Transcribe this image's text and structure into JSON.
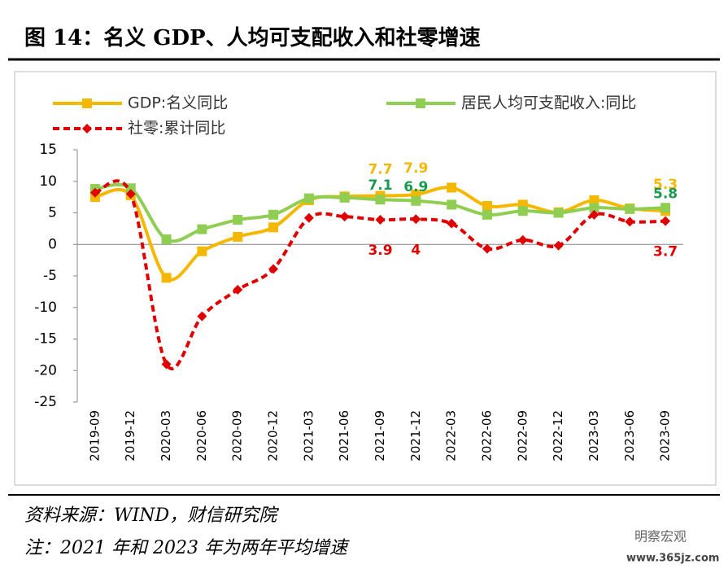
{
  "chart_data": {
    "type": "line",
    "title": "图 14：名义 GDP、人均可支配收入和社零增速",
    "source": "资料来源：WIND，财信研究院",
    "note": "注：2021 年和 2023 年为两年平均增速",
    "watermark": [
      "明察宏观",
      "www.365jz.com"
    ],
    "categories": [
      "2019-09",
      "2019-12",
      "2020-03",
      "2020-06",
      "2020-09",
      "2020-12",
      "2021-03",
      "2021-06",
      "2021-09",
      "2021-12",
      "2022-03",
      "2022-06",
      "2022-09",
      "2022-12",
      "2023-03",
      "2023-06",
      "2023-09"
    ],
    "series": [
      {
        "name": "GDP:名义同比",
        "color": "#f5b800",
        "marker": "square",
        "dashed": false,
        "values": [
          7.5,
          7.8,
          -5.3,
          -1.1,
          1.2,
          2.7,
          7.0,
          7.6,
          7.7,
          7.9,
          9.0,
          6.1,
          6.3,
          5.1,
          7.0,
          5.7,
          5.3
        ],
        "labeled_points": [
          8,
          9,
          16
        ]
      },
      {
        "name": "居民人均可支配收入:同比",
        "color": "#8fce52",
        "marker": "square",
        "dashed": false,
        "values": [
          8.8,
          8.9,
          0.8,
          2.4,
          3.9,
          4.7,
          7.3,
          7.4,
          7.1,
          6.9,
          6.3,
          4.7,
          5.3,
          5.0,
          5.8,
          5.6,
          5.8
        ],
        "labeled_points": [
          8,
          9,
          16
        ]
      },
      {
        "name": "社零:累计同比",
        "color": "#e00000",
        "marker": "diamond",
        "dashed": true,
        "values": [
          8.2,
          8.0,
          -19.0,
          -11.4,
          -7.2,
          -3.9,
          4.2,
          4.4,
          3.9,
          4.0,
          3.3,
          -0.7,
          0.7,
          -0.2,
          4.7,
          3.6,
          3.7
        ],
        "labeled_points": [
          8,
          9,
          16
        ]
      }
    ],
    "label_colors": [
      "#f5b800",
      "#1a9a50",
      "#e00000"
    ],
    "ylim": [
      -25,
      15
    ],
    "yticks": [
      15,
      10,
      5,
      0,
      -5,
      -10,
      -15,
      -20,
      -25
    ]
  }
}
